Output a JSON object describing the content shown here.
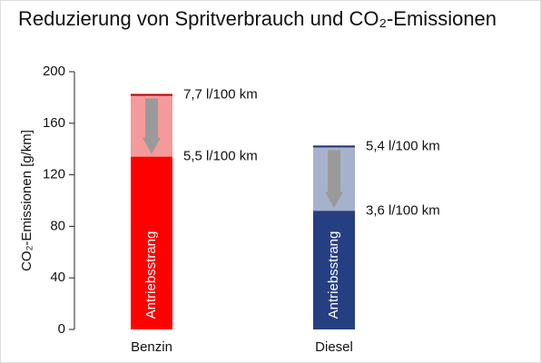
{
  "chart_data": {
    "type": "bar",
    "title": "Reduzierung von Spritverbrauch und CO₂-Emissionen",
    "y_label": "CO₂-Emissionen [g/km]",
    "categories": [
      "Benzin",
      "Diesel"
    ],
    "values": [
      134,
      92
    ],
    "colors": [
      "#ff0000",
      "#263f82"
    ],
    "before_values": [
      182,
      142
    ],
    "before_colors": [
      "#f59a9a",
      "#a6b2cc"
    ],
    "line_colors": [
      "#c00000",
      "#1c2f66"
    ],
    "value_annotations": [
      "5,5 l/100 km",
      "3,6 l/100 km"
    ],
    "before_annotations": [
      "7,7  l/100 km",
      "5,4  l/100 km"
    ],
    "bar_text": "Antriebsstrang",
    "arrow_color": "#9a9a9a",
    "ylim": [
      0,
      200
    ],
    "yticks": [
      0,
      40,
      80,
      120,
      160,
      200
    ]
  }
}
